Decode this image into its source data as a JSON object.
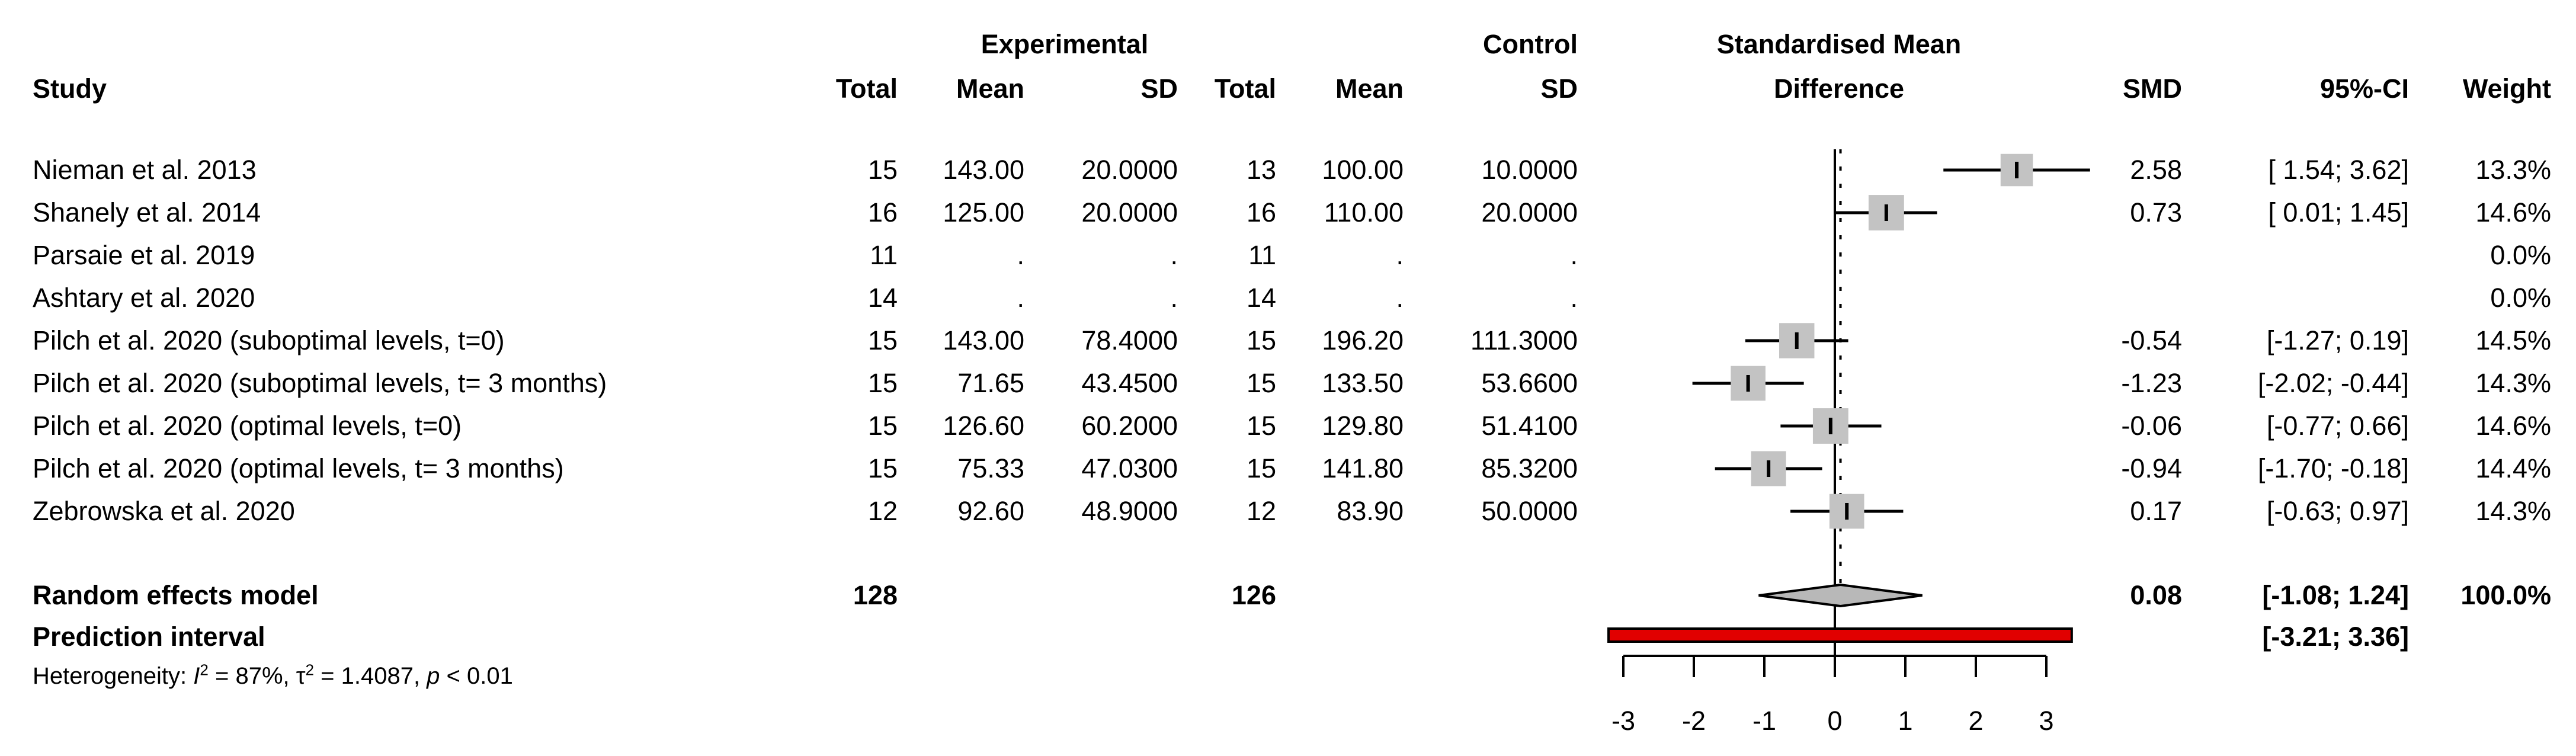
{
  "header": {
    "study": "Study",
    "experimental_group": "Experimental",
    "control_group": "Control",
    "exp_total": "Total",
    "exp_mean": "Mean",
    "exp_sd": "SD",
    "ctrl_total": "Total",
    "ctrl_mean": "Mean",
    "ctrl_sd": "SD",
    "effect_line1": "Standardised Mean",
    "effect_line2": "Difference",
    "smd": "SMD",
    "ci": "95%-CI",
    "weight": "Weight"
  },
  "chart_data": {
    "type": "forest",
    "title": "Standardised Mean Difference",
    "rows": [
      {
        "study": "Nieman et al. 2013",
        "exp_total": "15",
        "exp_mean": "143.00",
        "exp_sd": "20.0000",
        "ctrl_total": "13",
        "ctrl_mean": "100.00",
        "ctrl_sd": "10.0000",
        "smd": 2.58,
        "ci_low": 1.54,
        "ci_high": 3.62,
        "smd_label": "2.58",
        "ci_label": "[ 1.54; 3.62]",
        "weight": 13.3,
        "weight_label": "13.3%"
      },
      {
        "study": "Shanely et al. 2014",
        "exp_total": "16",
        "exp_mean": "125.00",
        "exp_sd": "20.0000",
        "ctrl_total": "16",
        "ctrl_mean": "110.00",
        "ctrl_sd": "20.0000",
        "smd": 0.73,
        "ci_low": 0.01,
        "ci_high": 1.45,
        "smd_label": "0.73",
        "ci_label": "[ 0.01; 1.45]",
        "weight": 14.6,
        "weight_label": "14.6%"
      },
      {
        "study": "Parsaie et al. 2019",
        "exp_total": "11",
        "exp_mean": ".",
        "exp_sd": ".",
        "ctrl_total": "11",
        "ctrl_mean": ".",
        "ctrl_sd": ".",
        "smd": null,
        "ci_low": null,
        "ci_high": null,
        "smd_label": "",
        "ci_label": "",
        "weight": 0,
        "weight_label": "0.0%"
      },
      {
        "study": "Ashtary et al. 2020",
        "exp_total": "14",
        "exp_mean": ".",
        "exp_sd": ".",
        "ctrl_total": "14",
        "ctrl_mean": ".",
        "ctrl_sd": ".",
        "smd": null,
        "ci_low": null,
        "ci_high": null,
        "smd_label": "",
        "ci_label": "",
        "weight": 0,
        "weight_label": "0.0%"
      },
      {
        "study": "Pilch et al. 2020 (suboptimal levels, t=0)",
        "exp_total": "15",
        "exp_mean": "143.00",
        "exp_sd": "78.4000",
        "ctrl_total": "15",
        "ctrl_mean": "196.20",
        "ctrl_sd": "111.3000",
        "smd": -0.54,
        "ci_low": -1.27,
        "ci_high": 0.19,
        "smd_label": "-0.54",
        "ci_label": "[-1.27;  0.19]",
        "weight": 14.5,
        "weight_label": "14.5%"
      },
      {
        "study": "Pilch et al. 2020 (suboptimal levels, t= 3 months)",
        "exp_total": "15",
        "exp_mean": "71.65",
        "exp_sd": "43.4500",
        "ctrl_total": "15",
        "ctrl_mean": "133.50",
        "ctrl_sd": "53.6600",
        "smd": -1.23,
        "ci_low": -2.02,
        "ci_high": -0.44,
        "smd_label": "-1.23",
        "ci_label": "[-2.02; -0.44]",
        "weight": 14.3,
        "weight_label": "14.3%"
      },
      {
        "study": "Pilch et al. 2020 (optimal levels, t=0)",
        "exp_total": "15",
        "exp_mean": "126.60",
        "exp_sd": "60.2000",
        "ctrl_total": "15",
        "ctrl_mean": "129.80",
        "ctrl_sd": "51.4100",
        "smd": -0.06,
        "ci_low": -0.77,
        "ci_high": 0.66,
        "smd_label": "-0.06",
        "ci_label": "[-0.77;  0.66]",
        "weight": 14.6,
        "weight_label": "14.6%"
      },
      {
        "study": "Pilch et al. 2020 (optimal levels, t= 3 months)",
        "exp_total": "15",
        "exp_mean": "75.33",
        "exp_sd": "47.0300",
        "ctrl_total": "15",
        "ctrl_mean": "141.80",
        "ctrl_sd": "85.3200",
        "smd": -0.94,
        "ci_low": -1.7,
        "ci_high": -0.18,
        "smd_label": "-0.94",
        "ci_label": "[-1.70; -0.18]",
        "weight": 14.4,
        "weight_label": "14.4%"
      },
      {
        "study": "Zebrowska et al. 2020",
        "exp_total": "12",
        "exp_mean": "92.60",
        "exp_sd": "48.9000",
        "ctrl_total": "12",
        "ctrl_mean": "83.90",
        "ctrl_sd": "50.0000",
        "smd": 0.17,
        "ci_low": -0.63,
        "ci_high": 0.97,
        "smd_label": "0.17",
        "ci_label": "[-0.63;  0.97]",
        "weight": 14.3,
        "weight_label": "14.3%"
      }
    ],
    "summary": {
      "label": "Random effects model",
      "exp_total": "128",
      "ctrl_total": "126",
      "smd": 0.08,
      "ci_low": -1.08,
      "ci_high": 1.24,
      "smd_label": "0.08",
      "ci_label": "[-1.08;  1.24]",
      "weight_label": "100.0%"
    },
    "prediction": {
      "label": "Prediction interval",
      "ci_low": -3.21,
      "ci_high": 3.36,
      "ci_label": "[-3.21;  3.36]"
    },
    "heterogeneity": {
      "prefix": "Heterogeneity: ",
      "i_sym": "I",
      "i_sup": "2",
      "mid1": " = 87%, τ",
      "tau_sup": "2",
      "mid2": " = 1.4087, ",
      "p_sym": "p",
      "tail": " < 0.01"
    },
    "axis": {
      "ticks": [
        "-3",
        "-2",
        "-1",
        "0",
        "1",
        "2",
        "3"
      ],
      "xmin": -3,
      "xmax": 3,
      "zero_line": 0,
      "pooled_line": 0.08
    },
    "colors": {
      "square": "#c3c3c3",
      "diamond": "#b8b8b8",
      "prediction_bar": "#e10000",
      "line": "#000000"
    }
  }
}
